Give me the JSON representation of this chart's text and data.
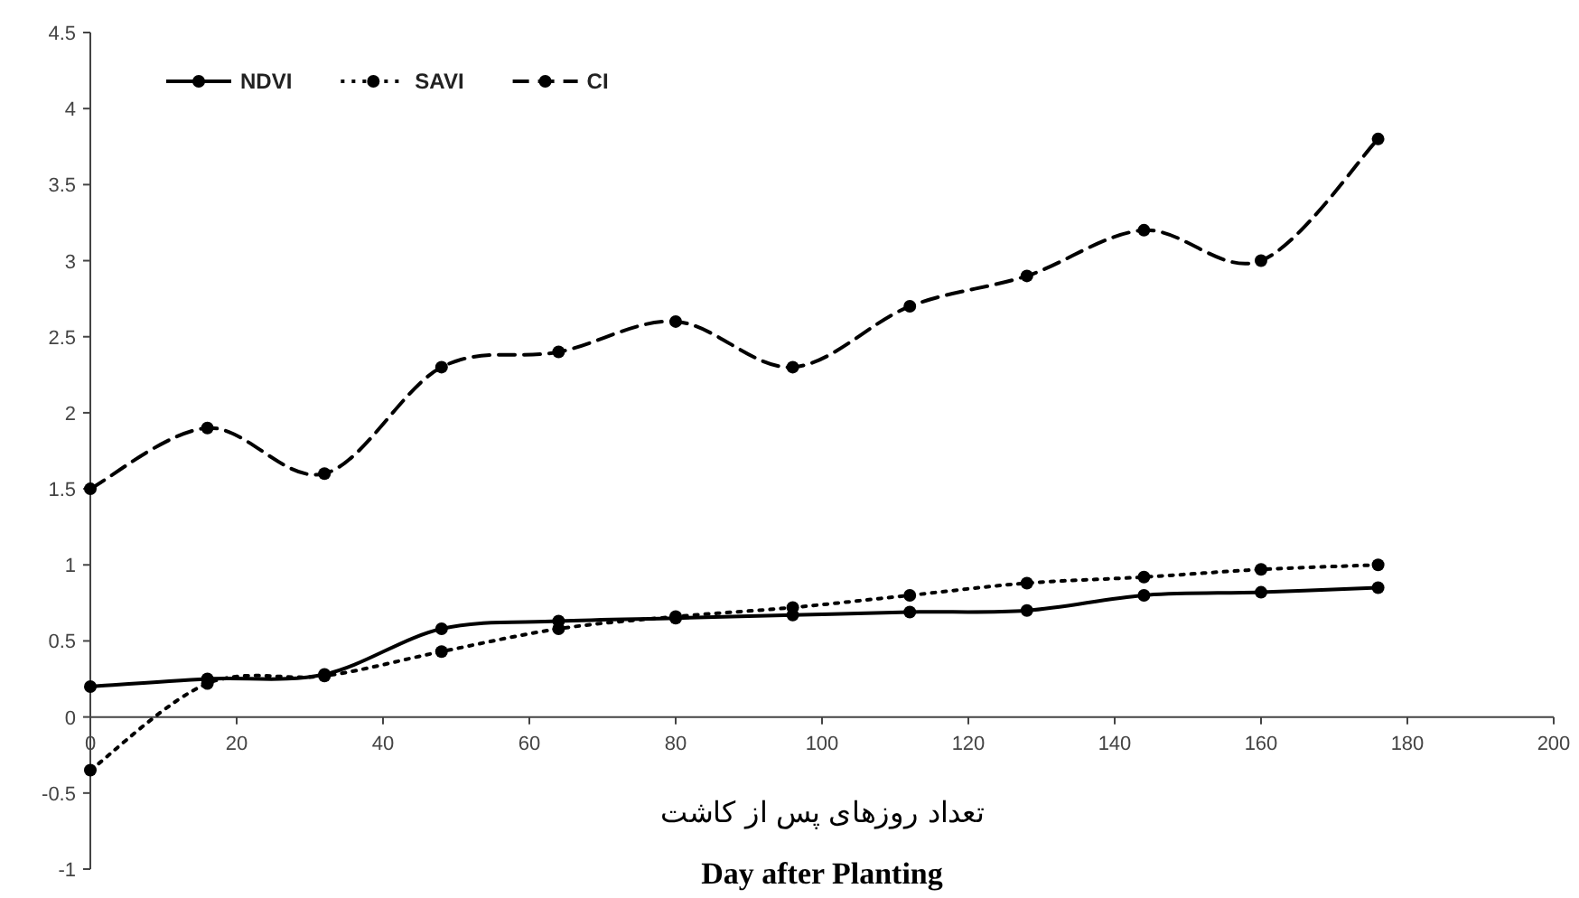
{
  "chart_data": {
    "type": "line",
    "xlabel": "تعداد روزهای پس از کاشت",
    "annotations": [
      "Day after Planting"
    ],
    "x": [
      0,
      16,
      32,
      48,
      64,
      80,
      96,
      112,
      128,
      144,
      160,
      176
    ],
    "series": [
      {
        "name": "NDVI",
        "color": "#000000",
        "line_style": "solid",
        "values": [
          0.2,
          0.25,
          0.28,
          0.58,
          0.63,
          0.65,
          0.67,
          0.69,
          0.7,
          0.8,
          0.82,
          0.85
        ]
      },
      {
        "name": "SAVI",
        "color": "#000000",
        "line_style": "dotted",
        "values": [
          -0.35,
          0.22,
          0.27,
          0.43,
          0.58,
          0.66,
          0.72,
          0.8,
          0.88,
          0.92,
          0.97,
          1.0
        ]
      },
      {
        "name": "CI",
        "color": "#000000",
        "line_style": "dashed",
        "values": [
          1.5,
          1.9,
          1.6,
          2.3,
          2.4,
          2.6,
          2.3,
          2.7,
          2.9,
          3.2,
          3.0,
          3.8
        ]
      }
    ],
    "marker": "circle",
    "legend": "top left",
    "grid": false,
    "xlim": [
      0,
      200
    ],
    "xticks": [
      0,
      20,
      40,
      60,
      80,
      100,
      120,
      140,
      160,
      180,
      200
    ],
    "ylim": [
      -1,
      4.5
    ],
    "yticks": [
      -1,
      -0.5,
      0,
      0.5,
      1,
      1.5,
      2,
      2.5,
      3,
      3.5,
      4,
      4.5
    ]
  }
}
